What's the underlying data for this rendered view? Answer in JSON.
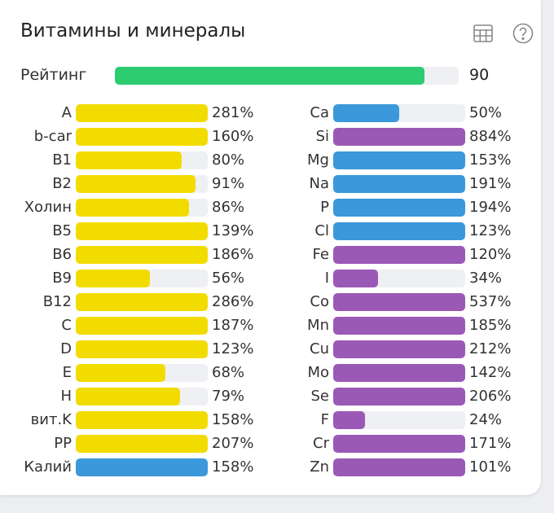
{
  "title": "Витамины и минералы",
  "icons": {
    "table": "table-icon",
    "help": "help-circle-icon"
  },
  "colors": {
    "vitamin": "#f2dc00",
    "mineral_blue": "#3a98db",
    "mineral_purple": "#9b59b6",
    "rating": "#2ecc71",
    "track": "#eef0f3"
  },
  "rating": {
    "label": "Рейтинг",
    "value": "90",
    "percent": 90
  },
  "chart_data": {
    "type": "bar",
    "orientation": "horizontal",
    "bar_fill_cap_percent": 100,
    "columns": [
      {
        "items": [
          {
            "label": "A",
            "value": 281,
            "text": "281%",
            "color": "yellow"
          },
          {
            "label": "b-car",
            "value": 160,
            "text": "160%",
            "color": "yellow"
          },
          {
            "label": "B1",
            "value": 80,
            "text": "80%",
            "color": "yellow"
          },
          {
            "label": "B2",
            "value": 91,
            "text": "91%",
            "color": "yellow"
          },
          {
            "label": "Холин",
            "value": 86,
            "text": "86%",
            "color": "yellow"
          },
          {
            "label": "B5",
            "value": 139,
            "text": "139%",
            "color": "yellow"
          },
          {
            "label": "B6",
            "value": 186,
            "text": "186%",
            "color": "yellow"
          },
          {
            "label": "B9",
            "value": 56,
            "text": "56%",
            "color": "yellow"
          },
          {
            "label": "B12",
            "value": 286,
            "text": "286%",
            "color": "yellow"
          },
          {
            "label": "C",
            "value": 187,
            "text": "187%",
            "color": "yellow"
          },
          {
            "label": "D",
            "value": 123,
            "text": "123%",
            "color": "yellow"
          },
          {
            "label": "E",
            "value": 68,
            "text": "68%",
            "color": "yellow"
          },
          {
            "label": "H",
            "value": 79,
            "text": "79%",
            "color": "yellow"
          },
          {
            "label": "вит.K",
            "value": 158,
            "text": "158%",
            "color": "yellow"
          },
          {
            "label": "PP",
            "value": 207,
            "text": "207%",
            "color": "yellow"
          },
          {
            "label": "Калий",
            "value": 158,
            "text": "158%",
            "color": "blue"
          }
        ]
      },
      {
        "items": [
          {
            "label": "Ca",
            "value": 50,
            "text": "50%",
            "color": "blue"
          },
          {
            "label": "Si",
            "value": 884,
            "text": "884%",
            "color": "purple"
          },
          {
            "label": "Mg",
            "value": 153,
            "text": "153%",
            "color": "blue"
          },
          {
            "label": "Na",
            "value": 191,
            "text": "191%",
            "color": "blue"
          },
          {
            "label": "P",
            "value": 194,
            "text": "194%",
            "color": "blue"
          },
          {
            "label": "Cl",
            "value": 123,
            "text": "123%",
            "color": "blue"
          },
          {
            "label": "Fe",
            "value": 120,
            "text": "120%",
            "color": "purple"
          },
          {
            "label": "I",
            "value": 34,
            "text": "34%",
            "color": "purple"
          },
          {
            "label": "Co",
            "value": 537,
            "text": "537%",
            "color": "purple"
          },
          {
            "label": "Mn",
            "value": 185,
            "text": "185%",
            "color": "purple"
          },
          {
            "label": "Cu",
            "value": 212,
            "text": "212%",
            "color": "purple"
          },
          {
            "label": "Mo",
            "value": 142,
            "text": "142%",
            "color": "purple"
          },
          {
            "label": "Se",
            "value": 206,
            "text": "206%",
            "color": "purple"
          },
          {
            "label": "F",
            "value": 24,
            "text": "24%",
            "color": "purple"
          },
          {
            "label": "Cr",
            "value": 171,
            "text": "171%",
            "color": "purple"
          },
          {
            "label": "Zn",
            "value": 101,
            "text": "101%",
            "color": "purple"
          }
        ]
      }
    ]
  }
}
